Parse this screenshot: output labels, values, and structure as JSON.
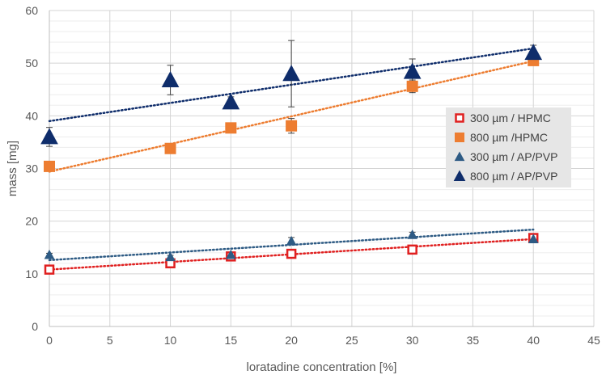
{
  "chart_data": {
    "type": "scatter",
    "title": "",
    "xlabel": "loratadine concentration [%]",
    "ylabel": "mass [mg]",
    "xlim": [
      0,
      45
    ],
    "ylim": [
      0,
      60
    ],
    "xticks": [
      0,
      5,
      10,
      15,
      20,
      25,
      30,
      35,
      40,
      45
    ],
    "yticks": [
      0,
      10,
      20,
      30,
      40,
      50,
      60
    ],
    "x_tick_labels": [
      "0",
      "5",
      "10",
      "15",
      "20",
      "25",
      "30",
      "35",
      "40",
      "45"
    ],
    "y_tick_labels": [
      "0",
      "10",
      "20",
      "30",
      "40",
      "50",
      "60"
    ],
    "grid": true,
    "legend_position": "right",
    "series": [
      {
        "name": "300 µm / HPMC",
        "marker": "hollow-square",
        "color": "#e02020",
        "x": [
          0,
          10,
          15,
          20,
          30,
          40
        ],
        "y": [
          10.8,
          12.0,
          13.3,
          13.8,
          14.6,
          16.8
        ],
        "errors": [
          0.3,
          0.3,
          0.4,
          0.4,
          0.3,
          0.3
        ],
        "trendline": [
          10.8,
          16.6
        ]
      },
      {
        "name": "800 µm /HPMC",
        "marker": "square",
        "color": "#ed7d31",
        "x": [
          0,
          10,
          15,
          20,
          30,
          40
        ],
        "y": [
          30.4,
          33.8,
          37.7,
          38.1,
          45.6,
          50.5
        ],
        "errors": [
          0.6,
          0.5,
          0.5,
          1.4,
          1.2,
          0.6
        ],
        "trendline": [
          29.4,
          50.4
        ]
      },
      {
        "name": "300 µm / AP/PVP",
        "marker": "triangle",
        "color": "#2e5b84",
        "x": [
          0,
          10,
          15,
          20,
          30,
          40
        ],
        "y": [
          13.6,
          13.2,
          13.6,
          16.2,
          17.4,
          16.6
        ],
        "errors": [
          0.3,
          0.3,
          0.3,
          0.7,
          0.5,
          0.3
        ],
        "trendline": [
          12.6,
          18.4
        ]
      },
      {
        "name": "800 µm / AP/PVP",
        "marker": "triangle",
        "color": "#0f2d6b",
        "x": [
          0,
          10,
          15,
          20,
          30,
          40
        ],
        "y": [
          36.0,
          46.8,
          42.6,
          48.0,
          48.4,
          52.0
        ],
        "errors": [
          1.8,
          2.8,
          1.0,
          6.3,
          2.4,
          1.4
        ],
        "trendline": [
          39.0,
          52.8
        ]
      }
    ]
  }
}
